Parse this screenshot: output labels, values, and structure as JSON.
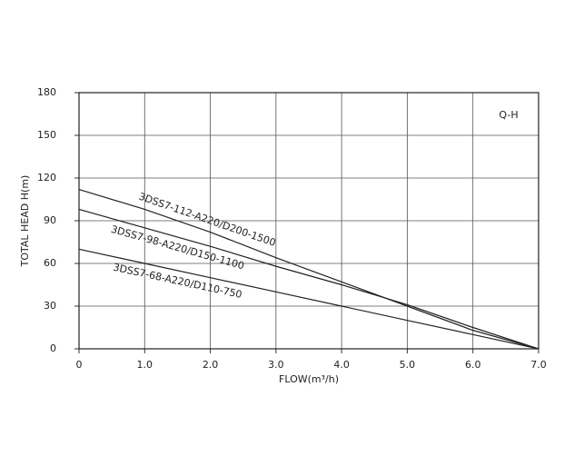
{
  "chart_data": {
    "type": "line",
    "annotation": "Q-H",
    "x_label": "FLOW(m³/h)",
    "y_label": "TOTAL HEAD H(m)",
    "x": [
      0,
      1,
      2,
      3,
      4,
      5,
      6,
      7
    ],
    "series": [
      {
        "name": "3DSS7-112-A220/D200-1500",
        "color": "#222222",
        "values": [
          112,
          98,
          82,
          64,
          47,
          30,
          13,
          0
        ]
      },
      {
        "name": "3DSS7-98-A220/D150-1100",
        "color": "#222222",
        "values": [
          98,
          85,
          72,
          58,
          45,
          31,
          15,
          0
        ]
      },
      {
        "name": "3DSS7-68-A220/D110-750",
        "color": "#222222",
        "values": [
          70,
          60,
          50,
          40,
          30,
          20,
          10,
          0
        ]
      }
    ],
    "xlim": [
      0,
      7
    ],
    "xticks": [
      0,
      {
        "value": 1,
        "label": "1.0"
      },
      {
        "value": 2,
        "label": "2.0"
      },
      {
        "value": 3,
        "label": "3.0"
      },
      {
        "value": 4,
        "label": "4.0"
      },
      {
        "value": 5,
        "label": "5.0"
      },
      {
        "value": 6,
        "label": "6.0"
      },
      {
        "value": 7,
        "label": "7.0"
      }
    ],
    "ylim": [
      0,
      180
    ],
    "yticks": [
      0,
      30,
      60,
      90,
      120,
      150,
      180
    ],
    "grid": true
  }
}
